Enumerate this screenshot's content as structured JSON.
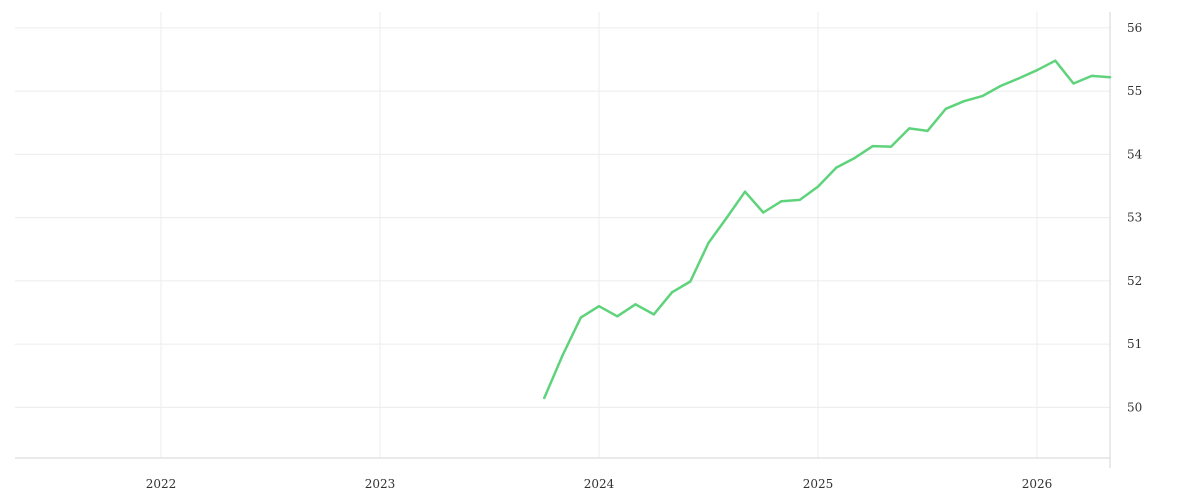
{
  "chart_data": {
    "type": "line",
    "title": "",
    "xlabel": "",
    "ylabel": "",
    "x_tick_labels": [
      "2022",
      "2023",
      "2024",
      "2025",
      "2026"
    ],
    "y_tick_labels": [
      "50",
      "51",
      "52",
      "53",
      "54",
      "55",
      "56"
    ],
    "xlim": [
      "2021-05",
      "2026-05"
    ],
    "ylim": [
      49.2,
      56.25
    ],
    "grid": true,
    "legend": "none",
    "series": [
      {
        "color": "#5fd37c",
        "points": [
          [
            "2023-10",
            50.15
          ],
          [
            "2023-11",
            50.82
          ],
          [
            "2023-12",
            51.42
          ],
          [
            "2024-01",
            51.6
          ],
          [
            "2024-02",
            51.44
          ],
          [
            "2024-03",
            51.63
          ],
          [
            "2024-04",
            51.47
          ],
          [
            "2024-05",
            51.82
          ],
          [
            "2024-06",
            51.99
          ],
          [
            "2024-07",
            52.6
          ],
          [
            "2024-08",
            53.0
          ],
          [
            "2024-09",
            53.41
          ],
          [
            "2024-10",
            53.08
          ],
          [
            "2024-11",
            53.26
          ],
          [
            "2024-12",
            53.28
          ],
          [
            "2025-01",
            53.49
          ],
          [
            "2025-02",
            53.79
          ],
          [
            "2025-03",
            53.94
          ],
          [
            "2025-04",
            54.13
          ],
          [
            "2025-05",
            54.12
          ],
          [
            "2025-06",
            54.41
          ],
          [
            "2025-07",
            54.37
          ],
          [
            "2025-08",
            54.72
          ],
          [
            "2025-09",
            54.84
          ],
          [
            "2025-10",
            54.92
          ],
          [
            "2025-11",
            55.08
          ],
          [
            "2025-12",
            55.2
          ],
          [
            "2026-01",
            55.33
          ],
          [
            "2026-02",
            55.48
          ],
          [
            "2026-03",
            55.12
          ],
          [
            "2026-04",
            55.24
          ],
          [
            "2026-05",
            55.22
          ]
        ]
      }
    ]
  }
}
